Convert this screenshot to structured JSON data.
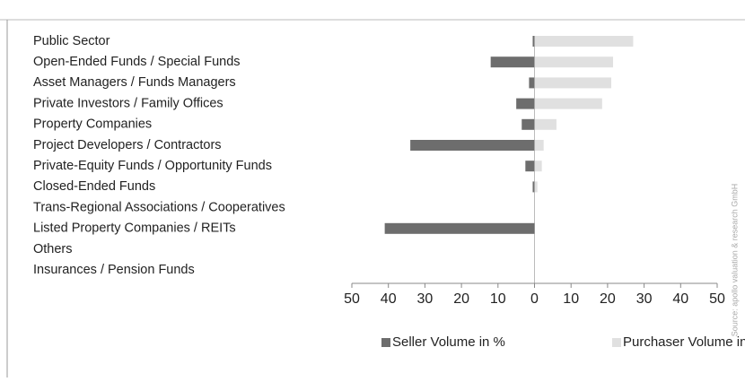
{
  "chart_data": {
    "type": "bar",
    "orientation": "horizontal",
    "categories": [
      "Public Sector",
      "Open-Ended Funds / Special Funds",
      "Asset Managers / Funds Managers",
      "Private Investors / Family Offices",
      "Property Companies",
      "Project Developers / Contractors",
      "Private-Equity Funds / Opportunity Funds",
      "Closed-Ended Funds",
      "Trans-Regional Associations / Cooperatives",
      "Listed Property Companies / REITs",
      "Others",
      "Insurances / Pension Funds"
    ],
    "series": [
      {
        "name": "Seller Volume in %",
        "color": "#6d6d6d",
        "values": [
          -0.5,
          -12,
          -1.5,
          -5,
          -3.5,
          -34,
          -2.5,
          -0.5,
          0,
          -41,
          0,
          0
        ]
      },
      {
        "name": "Purchaser Volume in %",
        "color": "#e0e0e0",
        "values": [
          27,
          21.5,
          21,
          18.5,
          6,
          2.5,
          2,
          0.8,
          0,
          0,
          0,
          0
        ]
      }
    ],
    "xlim": [
      -50,
      50
    ],
    "xticks": [
      {
        "value": -50,
        "label": "50"
      },
      {
        "value": -40,
        "label": "40"
      },
      {
        "value": -30,
        "label": "30"
      },
      {
        "value": -20,
        "label": "20"
      },
      {
        "value": -10,
        "label": "10"
      },
      0,
      10,
      20,
      30,
      40,
      50
    ],
    "source": "Source: apollo valuation & research GmbH"
  }
}
